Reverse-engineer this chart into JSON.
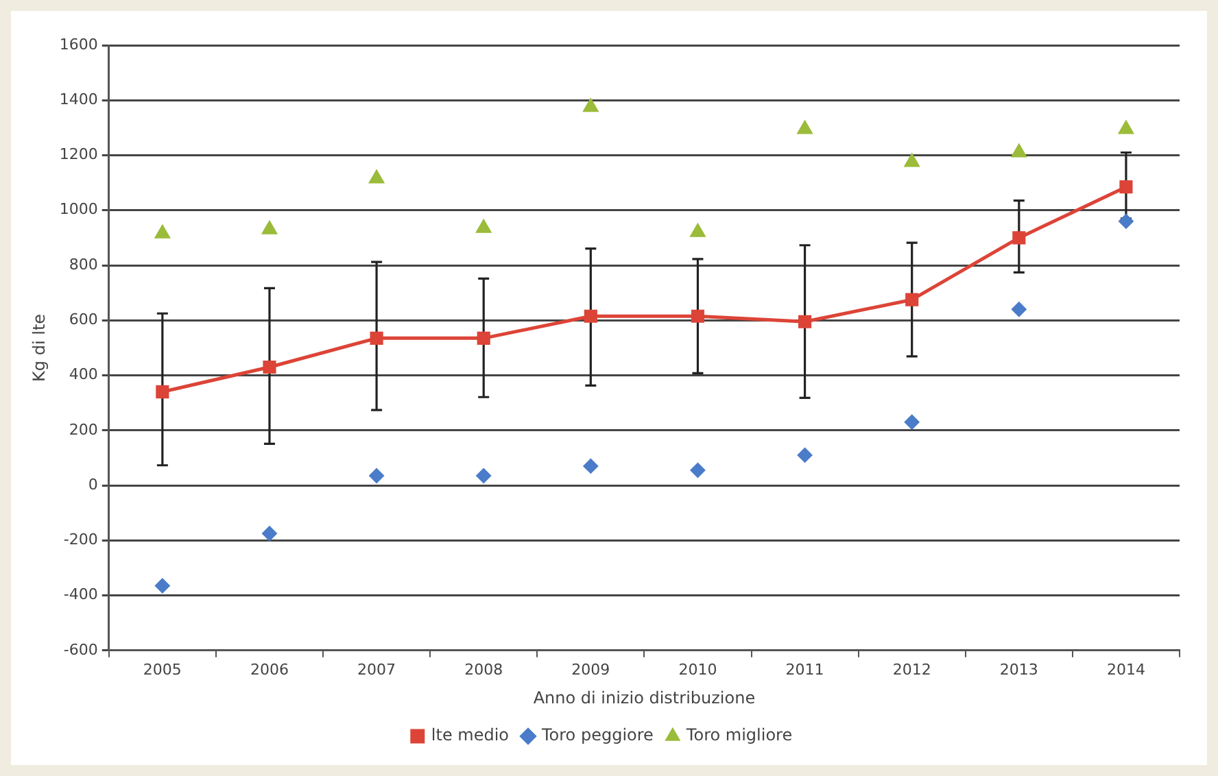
{
  "chart_data": {
    "type": "line",
    "xlabel": "Anno di inizio distribuzione",
    "ylabel": "Kg di lte",
    "categories": [
      "2005",
      "2006",
      "2007",
      "2008",
      "2009",
      "2010",
      "2011",
      "2012",
      "2013",
      "2014"
    ],
    "series": [
      {
        "name": "lte medio",
        "color": "#dc4437",
        "marker": "square",
        "values": [
          340,
          430,
          535,
          535,
          615,
          615,
          595,
          675,
          900,
          1085
        ],
        "errors": [
          [
            73,
            625
          ],
          [
            151,
            717
          ],
          [
            274,
            812
          ],
          [
            321,
            752
          ],
          [
            363,
            861
          ],
          [
            408,
            823
          ],
          [
            318,
            873
          ],
          [
            469,
            882
          ],
          [
            774,
            1035
          ],
          [
            970,
            1210
          ]
        ]
      },
      {
        "name": "Toro peggiore",
        "type": "scatter",
        "color": "#4a7cc9",
        "marker": "diamond",
        "values": [
          -365,
          -175,
          35,
          35,
          70,
          55,
          110,
          230,
          640,
          960
        ]
      },
      {
        "name": "Toro migliore",
        "type": "scatter",
        "color": "#9bbb3a",
        "marker": "triangle",
        "values": [
          915,
          930,
          1115,
          935,
          1375,
          920,
          1295,
          1175,
          1210,
          1295
        ]
      }
    ],
    "ylim": [
      -600,
      1600
    ],
    "yticks": [
      -600,
      -400,
      -200,
      0,
      200,
      400,
      600,
      800,
      1000,
      1200,
      1400,
      1600
    ],
    "grid": "y",
    "legend": "bottom"
  }
}
